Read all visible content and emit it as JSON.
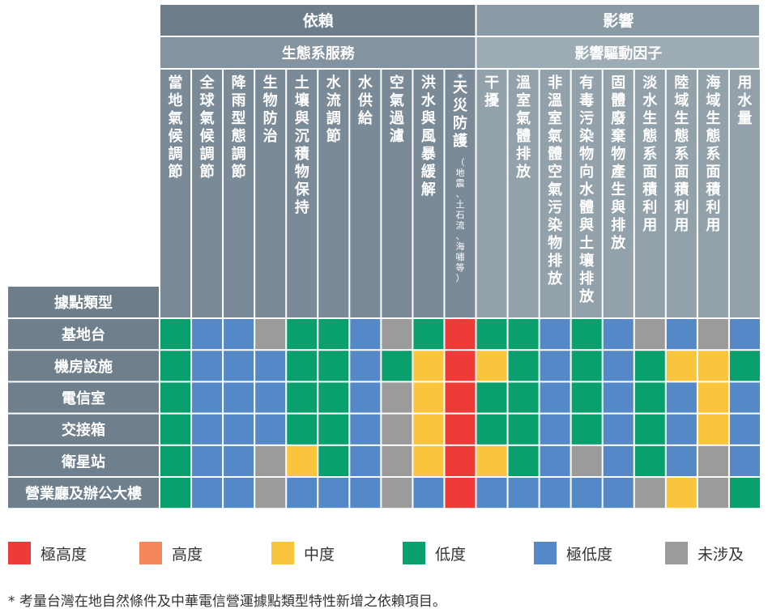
{
  "chart_data": {
    "type": "heatmap",
    "groups": [
      {
        "label": "依賴",
        "span": 10
      },
      {
        "label": "影響",
        "span": 9
      }
    ],
    "subgroups": [
      {
        "label": "生態系服務",
        "span": 10
      },
      {
        "label": "影響驅動因子",
        "span": 9
      }
    ],
    "row_header": "據點類型",
    "columns": [
      {
        "label": "當地氣候調節",
        "note": ""
      },
      {
        "label": "全球氣候調節",
        "note": ""
      },
      {
        "label": "降雨型態調節",
        "note": ""
      },
      {
        "label": "生物防治",
        "note": ""
      },
      {
        "label": "土壤與沉積物保持",
        "note": ""
      },
      {
        "label": "水流調節",
        "note": ""
      },
      {
        "label": "水供給",
        "note": ""
      },
      {
        "label": "空氣過濾",
        "note": ""
      },
      {
        "label": "洪水與風暴緩解",
        "note": ""
      },
      {
        "label": "*天災防護",
        "note": "（地震、土石流、海嘯等）"
      },
      {
        "label": "干擾",
        "note": ""
      },
      {
        "label": "溫室氣體排放",
        "note": ""
      },
      {
        "label": "非溫室氣體空氣污染物排放",
        "note": ""
      },
      {
        "label": "有毒污染物向水體與土壤排放",
        "note": ""
      },
      {
        "label": "固體廢棄物產生與排放",
        "note": ""
      },
      {
        "label": "淡水生態系面積利用",
        "note": ""
      },
      {
        "label": "陸域生態系面積利用",
        "note": ""
      },
      {
        "label": "海域生態系面積利用",
        "note": ""
      },
      {
        "label": "用水量",
        "note": ""
      }
    ],
    "rows": [
      "基地台",
      "機房設施",
      "電信室",
      "交接箱",
      "衛星站",
      "營業廳及辦公大樓"
    ],
    "values": [
      [
        "低度",
        "極低度",
        "極低度",
        "未涉及",
        "低度",
        "低度",
        "極低度",
        "未涉及",
        "低度",
        "極高度",
        "低度",
        "低度",
        "極低度",
        "低度",
        "極低度",
        "未涉及",
        "極低度",
        "未涉及",
        "極低度"
      ],
      [
        "低度",
        "極低度",
        "極低度",
        "極低度",
        "低度",
        "低度",
        "極低度",
        "低度",
        "中度",
        "極高度",
        "中度",
        "低度",
        "極低度",
        "低度",
        "極低度",
        "低度",
        "中度",
        "中度",
        "低度"
      ],
      [
        "低度",
        "極低度",
        "極低度",
        "極低度",
        "低度",
        "低度",
        "極低度",
        "未涉及",
        "中度",
        "極高度",
        "低度",
        "低度",
        "極低度",
        "低度",
        "極低度",
        "低度",
        "極低度",
        "中度",
        "極低度"
      ],
      [
        "低度",
        "極低度",
        "極低度",
        "極低度",
        "低度",
        "低度",
        "極低度",
        "未涉及",
        "中度",
        "極高度",
        "低度",
        "低度",
        "極低度",
        "低度",
        "極低度",
        "低度",
        "極低度",
        "中度",
        "極低度"
      ],
      [
        "低度",
        "極低度",
        "極低度",
        "未涉及",
        "中度",
        "低度",
        "極低度",
        "未涉及",
        "中度",
        "極高度",
        "中度",
        "低度",
        "極低度",
        "未涉及",
        "極低度",
        "低度",
        "極低度",
        "未涉及",
        "極低度"
      ],
      [
        "低度",
        "極低度",
        "極低度",
        "未涉及",
        "極低度",
        "極低度",
        "極低度",
        "未涉及",
        "極低度",
        "極高度",
        "極低度",
        "極低度",
        "極低度",
        "極低度",
        "極低度",
        "未涉及",
        "中度",
        "未涉及",
        "低度"
      ]
    ],
    "legend": [
      {
        "label": "極高度",
        "color": "#EE3B37"
      },
      {
        "label": "高度",
        "color": "#F6875A"
      },
      {
        "label": "中度",
        "color": "#FAC43D"
      },
      {
        "label": "低度",
        "color": "#0AA06E"
      },
      {
        "label": "極低度",
        "color": "#5488C6"
      },
      {
        "label": "未涉及",
        "color": "#9B9B9B"
      }
    ],
    "header_colors": {
      "group_dependency": "#6D7E8A",
      "group_impact": "#8B9BA5",
      "sub_dependency": "#8493A0",
      "sub_impact": "#9DABB4",
      "col_dependency": "#7B8A97",
      "col_impact": "#93A1AB",
      "row_header": "#6D7E8A",
      "row_label": "#6F808C"
    }
  },
  "footnote": "* 考量台灣在地自然條件及中華電信營運據點類型特性新增之依賴項目。"
}
